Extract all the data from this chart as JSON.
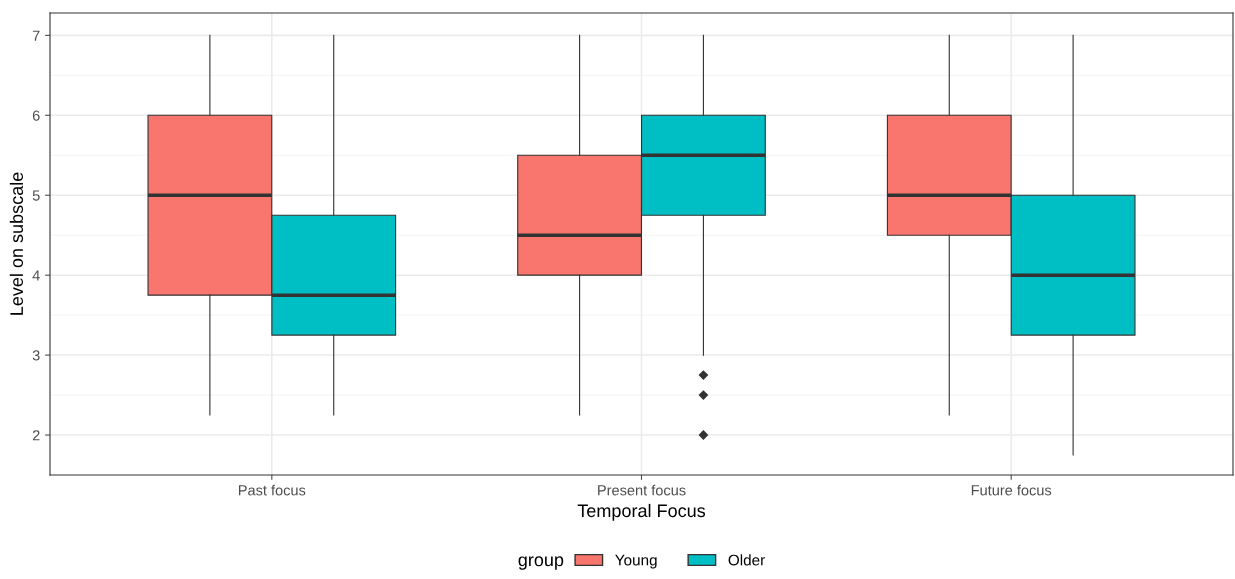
{
  "chart_data": {
    "type": "box",
    "xlabel": "Temporal Focus",
    "ylabel": "Level on subscale",
    "legend_title": "group",
    "categories": [
      "Past focus",
      "Present focus",
      "Future focus"
    ],
    "series": [
      {
        "name": "Young",
        "color": "#f8766d",
        "boxes": [
          {
            "low": 2.25,
            "q1": 3.75,
            "median": 5,
            "q3": 6,
            "high": 7
          },
          {
            "low": 2.25,
            "q1": 4,
            "median": 4.5,
            "q3": 5.5,
            "high": 7
          },
          {
            "low": 2.25,
            "q1": 4.5,
            "median": 5,
            "q3": 6,
            "high": 7
          }
        ]
      },
      {
        "name": "Older",
        "color": "#00bfc4",
        "boxes": [
          {
            "low": 2.25,
            "q1": 3.25,
            "median": 3.75,
            "q3": 4.75,
            "high": 7
          },
          {
            "low": 3,
            "q1": 4.75,
            "median": 5.5,
            "q3": 6,
            "high": 7,
            "outliers": [
              2.75,
              2.5,
              2
            ]
          },
          {
            "low": 1.75,
            "q1": 3.25,
            "median": 4,
            "q3": 5,
            "high": 7
          }
        ]
      }
    ],
    "ylim": [
      1.5,
      7.28
    ],
    "yticks": [
      2,
      3,
      4,
      5,
      6,
      7
    ],
    "grid": true,
    "legend": "bottom"
  }
}
